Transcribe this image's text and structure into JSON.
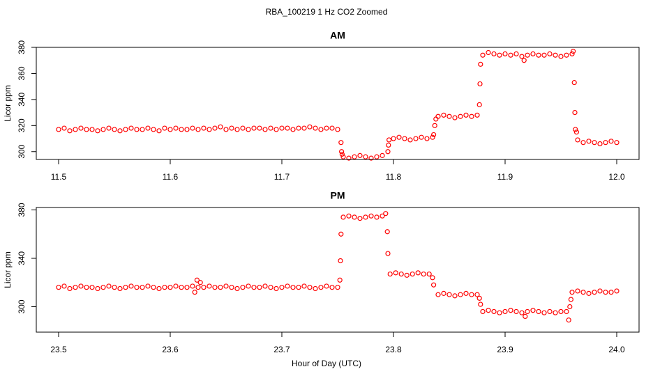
{
  "title": "RBA_100219  1 Hz CO2 Zoomed",
  "xlabel": "Hour of Day (UTC)",
  "chart_data": [
    {
      "type": "scatter",
      "title": "AM",
      "ylabel": "Licor ppm",
      "color": "#ff0000",
      "xlim": [
        11.48,
        12.02
      ],
      "ylim": [
        294,
        380
      ],
      "xticks": [
        11.5,
        11.6,
        11.7,
        11.8,
        11.9,
        {
          "value": 12,
          "label": "12.0"
        }
      ],
      "yticks": [
        300,
        320,
        340,
        360,
        380
      ],
      "x": [
        11.5,
        11.505,
        11.51,
        11.515,
        11.52,
        11.525,
        11.53,
        11.535,
        11.54,
        11.545,
        11.55,
        11.555,
        11.56,
        11.565,
        11.57,
        11.575,
        11.58,
        11.585,
        11.59,
        11.595,
        11.6,
        11.605,
        11.61,
        11.615,
        11.62,
        11.625,
        11.63,
        11.635,
        11.64,
        11.645,
        11.65,
        11.655,
        11.66,
        11.665,
        11.67,
        11.675,
        11.68,
        11.685,
        11.69,
        11.695,
        11.7,
        11.705,
        11.71,
        11.715,
        11.72,
        11.725,
        11.73,
        11.735,
        11.74,
        11.745,
        11.75,
        11.753,
        11.7535,
        11.754,
        11.755,
        11.76,
        11.765,
        11.77,
        11.775,
        11.78,
        11.785,
        11.79,
        11.795,
        11.7955,
        11.796,
        11.8,
        11.805,
        11.81,
        11.815,
        11.82,
        11.825,
        11.83,
        11.835,
        11.836,
        11.837,
        11.838,
        11.84,
        11.845,
        11.85,
        11.855,
        11.86,
        11.865,
        11.87,
        11.875,
        11.877,
        11.8775,
        11.878,
        11.88,
        11.885,
        11.89,
        11.895,
        11.9,
        11.905,
        11.91,
        11.915,
        11.92,
        11.925,
        11.93,
        11.935,
        11.94,
        11.945,
        11.95,
        11.955,
        11.96,
        11.917,
        11.961,
        11.962,
        11.9625,
        11.963,
        11.964,
        11.965,
        11.97,
        11.975,
        11.98,
        11.985,
        11.99,
        11.995,
        12.0
      ],
      "values": [
        317,
        318,
        316,
        317,
        318,
        317,
        317,
        316,
        317,
        318,
        317,
        316,
        317,
        318,
        317,
        317,
        318,
        317,
        316,
        318,
        317,
        318,
        317,
        317,
        318,
        317,
        318,
        317,
        318,
        319,
        317,
        318,
        317,
        318,
        317,
        318,
        318,
        317,
        318,
        317,
        318,
        318,
        317,
        318,
        318,
        319,
        318,
        317,
        318,
        318,
        317,
        307,
        300,
        298,
        296,
        295,
        296,
        297,
        296,
        295,
        296,
        297,
        300,
        305,
        309,
        310,
        311,
        310,
        309,
        310,
        311,
        310,
        311,
        313,
        320,
        325,
        327,
        328,
        327,
        326,
        327,
        328,
        327,
        328,
        336,
        352,
        367,
        374,
        376,
        375,
        374,
        375,
        374,
        375,
        373,
        374,
        375,
        374,
        374,
        375,
        374,
        373,
        374,
        375,
        370,
        377,
        353,
        330,
        317,
        315,
        309,
        307,
        308,
        307,
        306,
        307,
        308,
        307
      ]
    },
    {
      "type": "scatter",
      "title": "PM",
      "ylabel": "Licor ppm",
      "color": "#ff0000",
      "xlim": [
        23.48,
        24.02
      ],
      "ylim": [
        279,
        382
      ],
      "xticks": [
        23.5,
        23.6,
        23.7,
        23.8,
        23.9,
        {
          "value": 24,
          "label": "24.0"
        }
      ],
      "yticks": [
        300,
        340,
        380
      ],
      "x": [
        23.5,
        23.505,
        23.51,
        23.515,
        23.52,
        23.525,
        23.53,
        23.535,
        23.54,
        23.545,
        23.55,
        23.555,
        23.56,
        23.565,
        23.57,
        23.575,
        23.58,
        23.585,
        23.59,
        23.595,
        23.6,
        23.605,
        23.61,
        23.615,
        23.62,
        23.625,
        23.63,
        23.635,
        23.64,
        23.645,
        23.65,
        23.655,
        23.66,
        23.665,
        23.67,
        23.675,
        23.68,
        23.685,
        23.69,
        23.695,
        23.7,
        23.705,
        23.71,
        23.715,
        23.72,
        23.725,
        23.73,
        23.735,
        23.74,
        23.745,
        23.75,
        23.622,
        23.624,
        23.627,
        23.752,
        23.7525,
        23.753,
        23.755,
        23.76,
        23.765,
        23.77,
        23.775,
        23.78,
        23.785,
        23.79,
        23.793,
        23.7945,
        23.795,
        23.797,
        23.802,
        23.807,
        23.812,
        23.817,
        23.822,
        23.827,
        23.832,
        23.835,
        23.836,
        23.84,
        23.845,
        23.85,
        23.855,
        23.86,
        23.865,
        23.87,
        23.875,
        23.877,
        23.878,
        23.88,
        23.885,
        23.89,
        23.895,
        23.9,
        23.905,
        23.91,
        23.915,
        23.92,
        23.925,
        23.93,
        23.935,
        23.94,
        23.945,
        23.95,
        23.955,
        23.918,
        23.957,
        23.958,
        23.959,
        23.96,
        23.965,
        23.97,
        23.975,
        23.98,
        23.985,
        23.99,
        23.995,
        24.0
      ],
      "values": [
        316,
        317,
        315,
        316,
        317,
        316,
        316,
        315,
        316,
        317,
        316,
        315,
        316,
        317,
        316,
        316,
        317,
        316,
        315,
        316,
        316,
        317,
        316,
        316,
        317,
        316,
        316,
        317,
        316,
        316,
        317,
        316,
        315,
        316,
        317,
        316,
        316,
        317,
        316,
        315,
        316,
        317,
        316,
        316,
        317,
        316,
        315,
        316,
        317,
        316,
        316,
        312,
        322,
        320,
        322,
        338,
        360,
        374,
        375,
        374,
        373,
        374,
        375,
        374,
        375,
        377,
        362,
        344,
        327,
        328,
        327,
        326,
        327,
        328,
        327,
        327,
        324,
        318,
        310,
        311,
        310,
        309,
        310,
        311,
        310,
        310,
        307,
        302,
        296,
        297,
        296,
        295,
        296,
        297,
        296,
        295,
        296,
        297,
        296,
        295,
        296,
        295,
        296,
        296,
        292,
        289,
        300,
        306,
        312,
        313,
        312,
        311,
        312,
        313,
        312,
        312,
        313
      ]
    }
  ]
}
